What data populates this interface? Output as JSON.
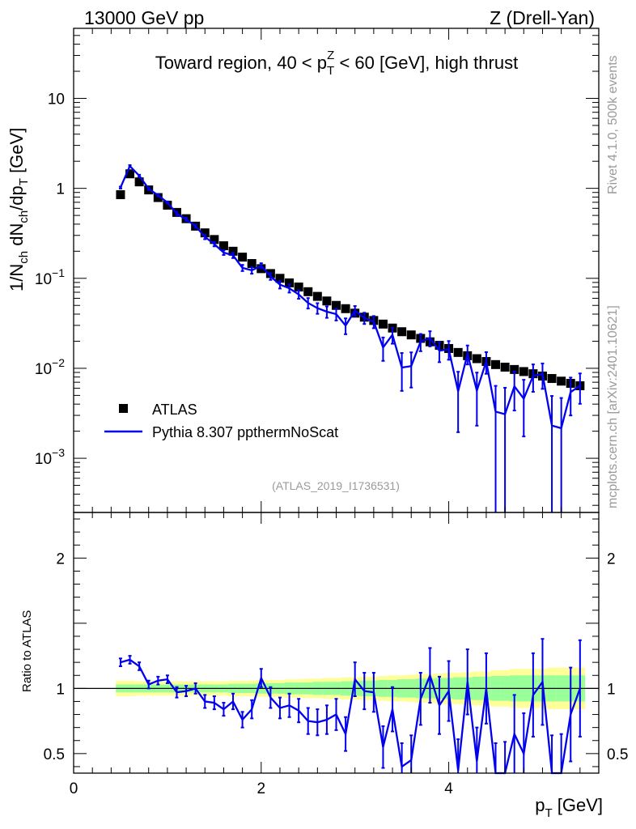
{
  "header": {
    "left_label": "13000 GeV pp",
    "right_label": "Z (Drell-Yan)"
  },
  "side_labels": {
    "rivet": "Rivet 4.1.0,  500k events",
    "mcplots": "mcplots.cern.ch [arXiv:2401.10621]"
  },
  "chart_data": {
    "type": "scatter",
    "title_parts": {
      "prefix": "Toward region, 40 < p",
      "sub": "T",
      "sup": "Z",
      "suffix": " < 60 [GeV], high thrust"
    },
    "reference_label": "(ATLAS_2019_I1736531)",
    "xlabel": {
      "main": "p",
      "sub": "T",
      "suffix": " [GeV]"
    },
    "ylabel_main": "1/N_ch dN_ch/dp_T [GeV]",
    "ylabel_ratio": "Ratio to ATLAS",
    "xlim": [
      0,
      5.6
    ],
    "ylim": [
      0.00025,
      60
    ],
    "ratio_ylim": [
      0.35,
      2.35
    ],
    "x_ticks": [
      {
        "value": 0,
        "label": "0"
      },
      {
        "value": 2,
        "label": "2"
      },
      {
        "value": 4,
        "label": "4"
      }
    ],
    "y_ticks": [
      {
        "value": 10,
        "label": "10",
        "exp": ""
      },
      {
        "value": 1,
        "label": "1",
        "exp": ""
      },
      {
        "value": 0.1,
        "label": "10",
        "exp": "−1"
      },
      {
        "value": 0.01,
        "label": "10",
        "exp": "−2"
      },
      {
        "value": 0.001,
        "label": "10",
        "exp": "−3"
      }
    ],
    "ratio_ticks": [
      {
        "value": 0.5,
        "label": "0.5"
      },
      {
        "value": 1,
        "label": "1"
      },
      {
        "value": 2,
        "label": "2"
      }
    ],
    "legend": [
      {
        "name": "ATLAS",
        "marker": "square",
        "color": "#000000"
      },
      {
        "name": "Pythia 8.307 ppthermNoScat",
        "marker": "line",
        "color": "#0000ee"
      }
    ],
    "x": [
      0.5,
      0.6,
      0.7,
      0.8,
      0.9,
      1.0,
      1.1,
      1.2,
      1.3,
      1.4,
      1.5,
      1.6,
      1.7,
      1.8,
      1.9,
      2.0,
      2.1,
      2.2,
      2.3,
      2.4,
      2.5,
      2.6,
      2.7,
      2.8,
      2.9,
      3.0,
      3.1,
      3.2,
      3.3,
      3.4,
      3.5,
      3.6,
      3.7,
      3.8,
      3.9,
      4.0,
      4.1,
      4.2,
      4.3,
      4.4,
      4.5,
      4.6,
      4.7,
      4.8,
      4.9,
      5.0,
      5.1,
      5.2,
      5.3,
      5.4
    ],
    "series": [
      {
        "name": "ATLAS",
        "values": [
          0.85,
          1.45,
          1.18,
          0.96,
          0.79,
          0.65,
          0.54,
          0.46,
          0.38,
          0.32,
          0.27,
          0.23,
          0.2,
          0.172,
          0.146,
          0.128,
          0.113,
          0.1,
          0.089,
          0.08,
          0.071,
          0.063,
          0.056,
          0.05,
          0.046,
          0.041,
          0.037,
          0.034,
          0.031,
          0.028,
          0.0255,
          0.0235,
          0.0215,
          0.0197,
          0.018,
          0.0166,
          0.015,
          0.0138,
          0.0128,
          0.0119,
          0.011,
          0.0103,
          0.0097,
          0.0092,
          0.0087,
          0.0082,
          0.0077,
          0.0072,
          0.0068,
          0.0064
        ],
        "band_green": [
          0.03,
          0.03,
          0.03,
          0.03,
          0.03,
          0.03,
          0.03,
          0.03,
          0.03,
          0.03,
          0.03,
          0.03,
          0.035,
          0.035,
          0.035,
          0.04,
          0.04,
          0.04,
          0.045,
          0.045,
          0.045,
          0.05,
          0.05,
          0.05,
          0.055,
          0.055,
          0.06,
          0.06,
          0.065,
          0.065,
          0.07,
          0.07,
          0.075,
          0.075,
          0.08,
          0.08,
          0.085,
          0.085,
          0.09,
          0.09,
          0.095,
          0.095,
          0.1,
          0.1,
          0.1,
          0.1,
          0.1,
          0.1,
          0.1,
          0.1
        ],
        "band_yellow": [
          0.06,
          0.06,
          0.055,
          0.055,
          0.055,
          0.055,
          0.055,
          0.055,
          0.055,
          0.055,
          0.055,
          0.055,
          0.06,
          0.06,
          0.06,
          0.065,
          0.065,
          0.065,
          0.07,
          0.07,
          0.075,
          0.075,
          0.08,
          0.08,
          0.085,
          0.085,
          0.09,
          0.09,
          0.095,
          0.1,
          0.1,
          0.105,
          0.11,
          0.11,
          0.115,
          0.12,
          0.12,
          0.125,
          0.13,
          0.13,
          0.14,
          0.14,
          0.15,
          0.15,
          0.15,
          0.15,
          0.16,
          0.16,
          0.16,
          0.16
        ]
      },
      {
        "name": "Pythia 8.307 ppthermNoScat",
        "ratio": [
          1.2,
          1.22,
          1.17,
          1.03,
          1.06,
          1.07,
          0.97,
          0.98,
          1.0,
          0.9,
          0.89,
          0.84,
          0.9,
          0.76,
          0.84,
          1.08,
          0.93,
          0.85,
          0.87,
          0.83,
          0.75,
          0.74,
          0.76,
          0.8,
          0.65,
          1.07,
          0.98,
          0.97,
          0.55,
          0.84,
          0.4,
          0.45,
          0.92,
          1.1,
          0.87,
          0.98,
          0.37,
          1.05,
          0.44,
          1.0,
          0.3,
          0.3,
          0.65,
          0.5,
          0.95,
          1.05,
          0.3,
          0.3,
          0.8,
          1.0
        ],
        "ratio_err": [
          0.03,
          0.03,
          0.03,
          0.03,
          0.03,
          0.03,
          0.04,
          0.04,
          0.04,
          0.05,
          0.05,
          0.05,
          0.06,
          0.06,
          0.07,
          0.07,
          0.08,
          0.08,
          0.09,
          0.09,
          0.1,
          0.1,
          0.11,
          0.12,
          0.13,
          0.13,
          0.14,
          0.15,
          0.16,
          0.17,
          0.18,
          0.19,
          0.2,
          0.21,
          0.22,
          0.23,
          0.24,
          0.25,
          0.26,
          0.27,
          0.28,
          0.29,
          0.3,
          0.31,
          0.32,
          0.33,
          0.34,
          0.35,
          0.36,
          0.37
        ]
      }
    ]
  }
}
